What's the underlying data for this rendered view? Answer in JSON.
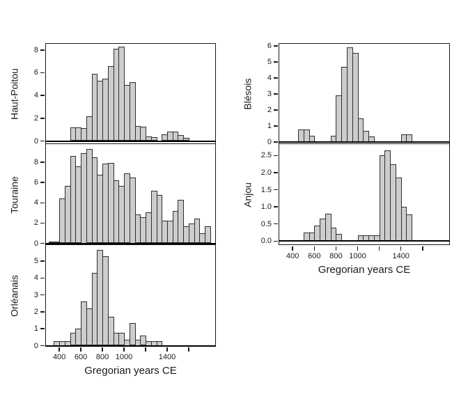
{
  "figure": {
    "background": "#ffffff",
    "text_color": "#1a1a1a",
    "bar_fill": "#cdcdcd",
    "bar_stroke": "#2e2e2e",
    "x_axis": {
      "label": "Gregorian years CE",
      "tick_years": [
        400,
        600,
        800,
        1000,
        1200,
        1400,
        1600
      ],
      "tick_labels": [
        "400",
        "600",
        "800",
        "1000",
        "",
        "1400",
        ""
      ],
      "year_range": [
        270,
        1852
      ]
    }
  },
  "chart_data": [
    {
      "id": "haut-poitou",
      "type": "bar",
      "ylabel": "Haut-Poitou",
      "xlabel": "Gregorian years CE",
      "bin_width_years": 50,
      "bin_start_year": 500,
      "values": [
        1.2,
        1.2,
        1.15,
        2.15,
        5.9,
        5.3,
        5.5,
        6.6,
        8.1,
        8.3,
        4.9,
        5.2,
        1.3,
        1.25,
        0.4,
        0.35,
        0,
        0.6,
        0.8,
        0.8,
        0.5,
        0.25
      ],
      "y_ticks": [
        "0",
        "2",
        "4",
        "6",
        "8"
      ],
      "ylim": [
        0,
        8.6
      ],
      "grid": false,
      "legend": false
    },
    {
      "id": "touraine",
      "type": "bar",
      "ylabel": "Touraine",
      "xlabel": "Gregorian years CE",
      "bin_width_years": 50,
      "bin_start_year": 300,
      "values": [
        0.15,
        0.15,
        4.4,
        5.7,
        8.6,
        7.6,
        8.9,
        9.3,
        8.5,
        6.75,
        7.9,
        7.95,
        6.2,
        5.7,
        6.9,
        6.5,
        2.85,
        2.6,
        3.05,
        5.2,
        4.8,
        2.2,
        2.2,
        3.2,
        4.3,
        1.65,
        1.95,
        2.45,
        1.0,
        1.65
      ],
      "y_ticks": [
        "0",
        "2",
        "4",
        "6",
        "8"
      ],
      "ylim": [
        0,
        9.8
      ],
      "grid": false,
      "legend": false
    },
    {
      "id": "orleanais",
      "type": "bar",
      "ylabel": "Orléanais",
      "xlabel": "Gregorian years CE",
      "bin_width_years": 50,
      "bin_start_year": 350,
      "values": [
        0.25,
        0.25,
        0.25,
        0.75,
        1.0,
        2.6,
        2.2,
        4.3,
        5.65,
        5.3,
        1.7,
        0.75,
        0.75,
        0.35,
        1.35,
        0.35,
        0.6,
        0.25,
        0.25,
        0.25
      ],
      "y_ticks": [
        "0",
        "1",
        "2",
        "3",
        "4",
        "5"
      ],
      "ylim": [
        0,
        5.9
      ],
      "grid": false,
      "legend": false
    },
    {
      "id": "blesois",
      "type": "bar",
      "ylabel": "Blésois",
      "xlabel": "Gregorian years CE",
      "bin_width_years": 50,
      "bin_start_year": 450,
      "values": [
        0.8,
        0.8,
        0.4,
        0,
        0,
        0,
        0.4,
        2.9,
        4.7,
        5.9,
        5.55,
        1.5,
        0.7,
        0.35,
        0,
        0,
        0,
        0,
        0,
        0.5,
        0.5
      ],
      "y_ticks": [
        "0",
        "1",
        "2",
        "3",
        "4",
        "5",
        "6"
      ],
      "ylim": [
        0,
        6.2
      ],
      "grid": false,
      "legend": false
    },
    {
      "id": "anjou",
      "type": "bar",
      "ylabel": "Anjou",
      "xlabel": "Gregorian years CE",
      "bin_width_years": 50,
      "bin_start_year": 500,
      "values": [
        0.25,
        0.25,
        0.45,
        0.65,
        0.8,
        0.4,
        0.2,
        0,
        0,
        0,
        0.17,
        0.17,
        0.17,
        0.17,
        2.5,
        2.65,
        2.25,
        1.85,
        1.0,
        0.78
      ],
      "y_ticks": [
        "0.0",
        "0.5",
        "1.0",
        "1.5",
        "2.0",
        "2.5"
      ],
      "ylim": [
        0,
        2.8
      ],
      "grid": false,
      "legend": false
    }
  ]
}
